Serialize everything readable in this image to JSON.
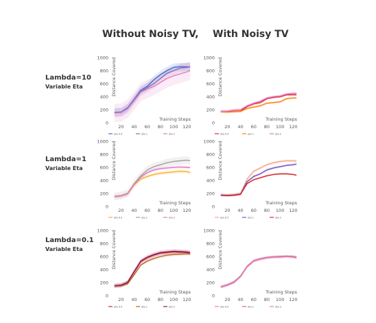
{
  "headers": {
    "left": "Without Noisy TV,",
    "right": "With Noisy TV"
  },
  "rows": [
    {
      "label": "Lambda=10",
      "sublabel": "Variable Eta"
    },
    {
      "label": "Lambda=1",
      "sublabel": "Variable Eta"
    },
    {
      "label": "Lambda=0.1",
      "sublabel": "Variable Eta"
    }
  ],
  "chart_data": [
    {
      "type": "line",
      "row": 0,
      "col": 0,
      "xlabel": "Training Steps",
      "ylabel": "Distance Covered",
      "xticks": [
        20,
        40,
        60,
        80,
        100,
        120
      ],
      "yticks": [
        0,
        200,
        400,
        600,
        800,
        1000
      ],
      "xlim": [
        5,
        128
      ],
      "ylim": [
        0,
        1000
      ],
      "grid": false,
      "legend": [
        "eta 0.5",
        "eta 1",
        "eta 2"
      ],
      "x": [
        10,
        20,
        30,
        40,
        50,
        60,
        70,
        80,
        90,
        100,
        110,
        120,
        125
      ],
      "series": [
        {
          "color": "#3b6fd6",
          "values": [
            160,
            165,
            230,
            360,
            500,
            560,
            660,
            740,
            800,
            850,
            860,
            860,
            855
          ],
          "band": 60
        },
        {
          "color": "#8c6bb1",
          "values": [
            155,
            160,
            220,
            350,
            480,
            540,
            600,
            680,
            760,
            800,
            840,
            850,
            860
          ],
          "band": 70
        },
        {
          "color": "#e377c2",
          "values": [
            150,
            155,
            215,
            340,
            470,
            520,
            560,
            620,
            680,
            720,
            750,
            780,
            800
          ],
          "band": 140
        }
      ]
    },
    {
      "type": "line",
      "row": 0,
      "col": 1,
      "xlabel": "Training Steps",
      "ylabel": "Distance Covered",
      "xticks": [
        20,
        40,
        60,
        80,
        100,
        120
      ],
      "yticks": [
        0,
        200,
        400,
        600,
        800,
        1000
      ],
      "xlim": [
        5,
        128
      ],
      "ylim": [
        0,
        1000
      ],
      "grid": false,
      "legend": [
        "eta 0.5",
        "eta 1",
        "eta 2"
      ],
      "x": [
        10,
        20,
        30,
        40,
        50,
        60,
        70,
        80,
        90,
        100,
        110,
        120,
        125
      ],
      "series": [
        {
          "color": "#d62728",
          "values": [
            175,
            170,
            175,
            180,
            250,
            290,
            310,
            370,
            390,
            400,
            430,
            430,
            430
          ],
          "band": 20
        },
        {
          "color": "#ff7f0e",
          "values": [
            170,
            165,
            170,
            175,
            220,
            240,
            260,
            300,
            310,
            320,
            370,
            380,
            380
          ],
          "band": 20
        },
        {
          "color": "#e377c2",
          "values": [
            175,
            180,
            195,
            200,
            260,
            300,
            330,
            380,
            400,
            410,
            440,
            450,
            450
          ],
          "band": 25
        }
      ]
    },
    {
      "type": "line",
      "row": 1,
      "col": 0,
      "xlabel": "Training Steps",
      "ylabel": "Distance Covered",
      "xticks": [
        20,
        40,
        60,
        80,
        100,
        120
      ],
      "yticks": [
        0,
        200,
        400,
        600,
        800,
        1000
      ],
      "xlim": [
        5,
        128
      ],
      "ylim": [
        0,
        1000
      ],
      "grid": false,
      "legend": [
        "eta 0.5",
        "eta 1",
        "eta 2"
      ],
      "x": [
        10,
        20,
        30,
        40,
        50,
        60,
        70,
        80,
        90,
        100,
        110,
        120,
        125
      ],
      "series": [
        {
          "color": "#f0b429",
          "values": [
            150,
            160,
            190,
            330,
            420,
            460,
            490,
            510,
            520,
            530,
            540,
            535,
            520
          ],
          "band": 30
        },
        {
          "color": "#9e9e9e",
          "values": [
            155,
            165,
            200,
            350,
            470,
            560,
            610,
            640,
            670,
            690,
            700,
            710,
            700
          ],
          "band": 60
        },
        {
          "color": "#e377c2",
          "values": [
            150,
            160,
            195,
            340,
            450,
            520,
            560,
            580,
            590,
            600,
            605,
            600,
            595
          ],
          "band": 25
        }
      ]
    },
    {
      "type": "line",
      "row": 1,
      "col": 1,
      "xlabel": "Training Steps",
      "ylabel": "Distance Covered",
      "xticks": [
        20,
        40,
        60,
        80,
        100,
        120
      ],
      "yticks": [
        0,
        200,
        400,
        600,
        800,
        1000
      ],
      "xlim": [
        5,
        128
      ],
      "ylim": [
        0,
        1000
      ],
      "grid": false,
      "legend": [
        "eta 0.5",
        "eta 1",
        "eta 2"
      ],
      "x": [
        10,
        20,
        30,
        40,
        50,
        60,
        70,
        80,
        90,
        100,
        110,
        120,
        125
      ],
      "series": [
        {
          "color": "#f4a582",
          "values": [
            180,
            175,
            185,
            200,
            420,
            540,
            590,
            640,
            670,
            690,
            700,
            700,
            695
          ],
          "band": 25
        },
        {
          "color": "#7b4fbf",
          "values": [
            175,
            170,
            175,
            190,
            380,
            460,
            500,
            560,
            590,
            610,
            630,
            640,
            650
          ],
          "band": 20
        },
        {
          "color": "#d62728",
          "values": [
            170,
            165,
            170,
            185,
            350,
            410,
            440,
            470,
            490,
            500,
            500,
            490,
            480
          ],
          "band": 15
        }
      ]
    },
    {
      "type": "line",
      "row": 2,
      "col": 0,
      "xlabel": "Training Steps",
      "ylabel": "Distance Covered",
      "xticks": [
        20,
        40,
        60,
        80,
        100,
        120
      ],
      "yticks": [
        0,
        200,
        400,
        600,
        800,
        1000
      ],
      "xlim": [
        5,
        128
      ],
      "ylim": [
        0,
        1000
      ],
      "grid": false,
      "legend": [
        "eta 0.5",
        "eta 1",
        "eta 2"
      ],
      "x": [
        10,
        20,
        30,
        40,
        50,
        60,
        70,
        80,
        90,
        100,
        110,
        120,
        125
      ],
      "series": [
        {
          "color": "#d62728",
          "values": [
            150,
            160,
            200,
            360,
            520,
            580,
            620,
            650,
            660,
            670,
            665,
            660,
            655
          ],
          "band": 30
        },
        {
          "color": "#b5651d",
          "values": [
            145,
            150,
            180,
            320,
            470,
            530,
            570,
            600,
            620,
            630,
            635,
            640,
            640
          ],
          "band": 25
        },
        {
          "color": "#8b1a5a",
          "values": [
            150,
            160,
            205,
            370,
            530,
            590,
            630,
            660,
            670,
            680,
            675,
            670,
            660
          ],
          "band": 35
        }
      ]
    },
    {
      "type": "line",
      "row": 2,
      "col": 1,
      "xlabel": "Training Steps",
      "ylabel": "Distance Covered",
      "xticks": [
        20,
        40,
        60,
        80,
        100,
        120
      ],
      "yticks": [
        0,
        200,
        400,
        600,
        800,
        1000
      ],
      "xlim": [
        5,
        128
      ],
      "ylim": [
        0,
        1000
      ],
      "grid": false,
      "legend": [
        "eta 0.5",
        "eta 1",
        "eta 2"
      ],
      "x": [
        10,
        20,
        30,
        40,
        50,
        60,
        70,
        80,
        90,
        100,
        110,
        120,
        125
      ],
      "series": [
        {
          "color": "#f08080",
          "values": [
            130,
            160,
            200,
            290,
            440,
            530,
            560,
            580,
            590,
            590,
            600,
            590,
            580
          ],
          "band": 25
        },
        {
          "color": "#c06c84",
          "values": [
            135,
            165,
            210,
            300,
            450,
            535,
            565,
            585,
            595,
            600,
            605,
            600,
            590
          ],
          "band": 20
        },
        {
          "color": "#e377c2",
          "values": [
            130,
            160,
            205,
            295,
            445,
            530,
            560,
            580,
            590,
            595,
            600,
            595,
            585
          ],
          "band": 20
        }
      ]
    }
  ]
}
